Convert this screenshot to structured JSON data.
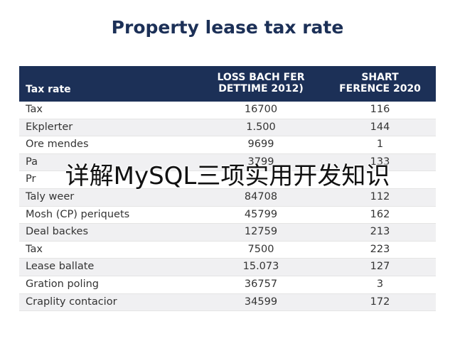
{
  "title": "Property lease tax rate",
  "table": {
    "header": [
      [
        "Tax rate"
      ],
      [
        "LOSS BACH FER",
        "DETTIME 2012)"
      ],
      [
        "SHART",
        "FERENCE 2020"
      ]
    ],
    "rows": [
      [
        "Tax",
        "16700",
        "116"
      ],
      [
        "Ekplerter",
        "1.500",
        "144"
      ],
      [
        "Ore mendes",
        "9699",
        "1"
      ],
      [
        "Pa",
        "3799",
        "133"
      ],
      [
        "Pr"
      ],
      [
        "Taly weer",
        "84708",
        "112"
      ],
      [
        "Mosh (CP) periquets",
        "45799",
        "162"
      ],
      [
        "Deal backes",
        "12759",
        "213"
      ],
      [
        "Tax",
        "7500",
        "223"
      ],
      [
        "Lease ballate",
        "15.073",
        "127"
      ],
      [
        "Gration poling",
        "36757",
        "3"
      ],
      [
        "Craplity contacior",
        "34599",
        "172"
      ]
    ]
  },
  "overlay": "详解MySQL三项实用开发知识"
}
